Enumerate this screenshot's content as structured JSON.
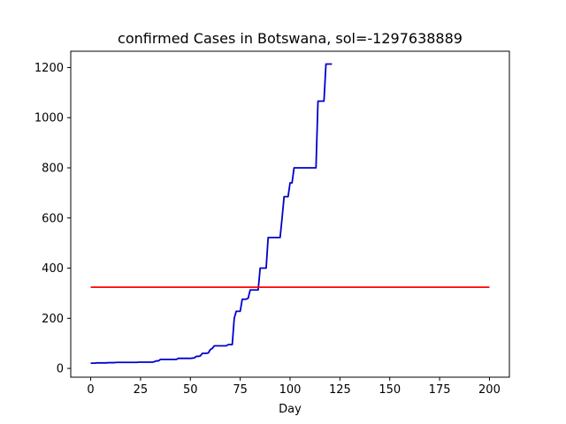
{
  "chart_data": {
    "type": "line",
    "title": "confirmed Cases in Botswana, sol=-1297638889",
    "xlabel": "Day",
    "ylabel": "",
    "xlim": [
      -10,
      210
    ],
    "ylim": [
      -35,
      1265
    ],
    "xticks": [
      0,
      25,
      50,
      75,
      100,
      125,
      150,
      175,
      200
    ],
    "yticks": [
      0,
      200,
      400,
      600,
      800,
      1000,
      1200
    ],
    "grid": false,
    "series": [
      {
        "color": "#0000cc",
        "x": [
          0,
          2,
          3,
          8,
          9,
          12,
          13,
          23,
          24,
          31,
          32,
          33,
          34,
          35,
          36,
          43,
          44,
          50,
          51,
          52,
          53,
          54,
          55,
          56,
          58,
          59,
          60,
          61,
          62,
          63,
          64,
          68,
          69,
          71,
          72,
          73,
          74,
          75,
          76,
          78,
          79,
          80,
          81,
          82,
          83,
          84,
          85,
          86,
          87,
          88,
          89,
          90,
          91,
          92,
          93,
          94,
          95,
          96,
          97,
          98,
          99,
          100,
          101,
          102,
          103,
          104,
          105,
          106,
          107,
          108,
          109,
          110,
          111,
          112,
          113,
          114,
          115,
          116,
          117,
          118,
          119,
          120,
          121
        ],
        "y": [
          21,
          21,
          22,
          22,
          23,
          23,
          24,
          24,
          25,
          25,
          27,
          30,
          30,
          36,
          36,
          36,
          40,
          40,
          41,
          42,
          48,
          48,
          50,
          60,
          60,
          62,
          75,
          80,
          90,
          90,
          90,
          90,
          95,
          95,
          200,
          228,
          228,
          228,
          276,
          276,
          280,
          313,
          313,
          313,
          313,
          313,
          400,
          400,
          400,
          400,
          522,
          522,
          522,
          522,
          522,
          522,
          522,
          600,
          685,
          685,
          685,
          740,
          740,
          800,
          800,
          800,
          800,
          800,
          800,
          800,
          800,
          800,
          800,
          800,
          800,
          1066,
          1066,
          1066,
          1066,
          1214,
          1214,
          1214,
          1214
        ]
      },
      {
        "color": "#ff0000",
        "x": [
          0,
          200
        ],
        "y": [
          324,
          324
        ]
      }
    ]
  },
  "colors": {
    "axes": "#000000",
    "background": "#ffffff"
  }
}
